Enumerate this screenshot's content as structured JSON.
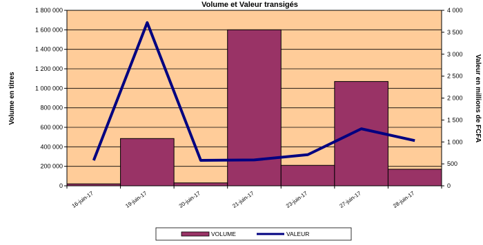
{
  "chart_data": {
    "type": "bar",
    "title": "Volume et Valeur transigés",
    "categories": [
      "16-juin-17",
      "19-juin-17",
      "20-juin-17",
      "21-juin-17",
      "23-juin-17",
      "27-juin-17",
      "28-juin-17"
    ],
    "ylabel": "Volume en titres",
    "y2label": "Valeur en millions de FCFA",
    "ylim": [
      0,
      1800000
    ],
    "y2lim": [
      0,
      4000
    ],
    "yticks": [
      "0",
      "200 000",
      "400 000",
      "600 000",
      "800 000",
      "1 000 000",
      "1 200 000",
      "1 400 000",
      "1 600 000",
      "1 800 000"
    ],
    "y2ticks": [
      "0",
      "500",
      "1 000",
      "1 500",
      "2 000",
      "2 500",
      "3 000",
      "3 500",
      "4 000"
    ],
    "grid": true,
    "legend_position": "bottom",
    "series": [
      {
        "name": "VOLUME",
        "type": "bar",
        "axis": "left",
        "color": "#993366",
        "values": [
          20000,
          485000,
          30000,
          1600000,
          210000,
          1070000,
          170000
        ]
      },
      {
        "name": "VALEUR",
        "type": "line",
        "axis": "right",
        "color": "#000080",
        "values": [
          580,
          3720,
          580,
          590,
          710,
          1300,
          1030
        ]
      }
    ],
    "colors": {
      "plot_background": "#FFCC99",
      "gridline": "#000000"
    }
  }
}
